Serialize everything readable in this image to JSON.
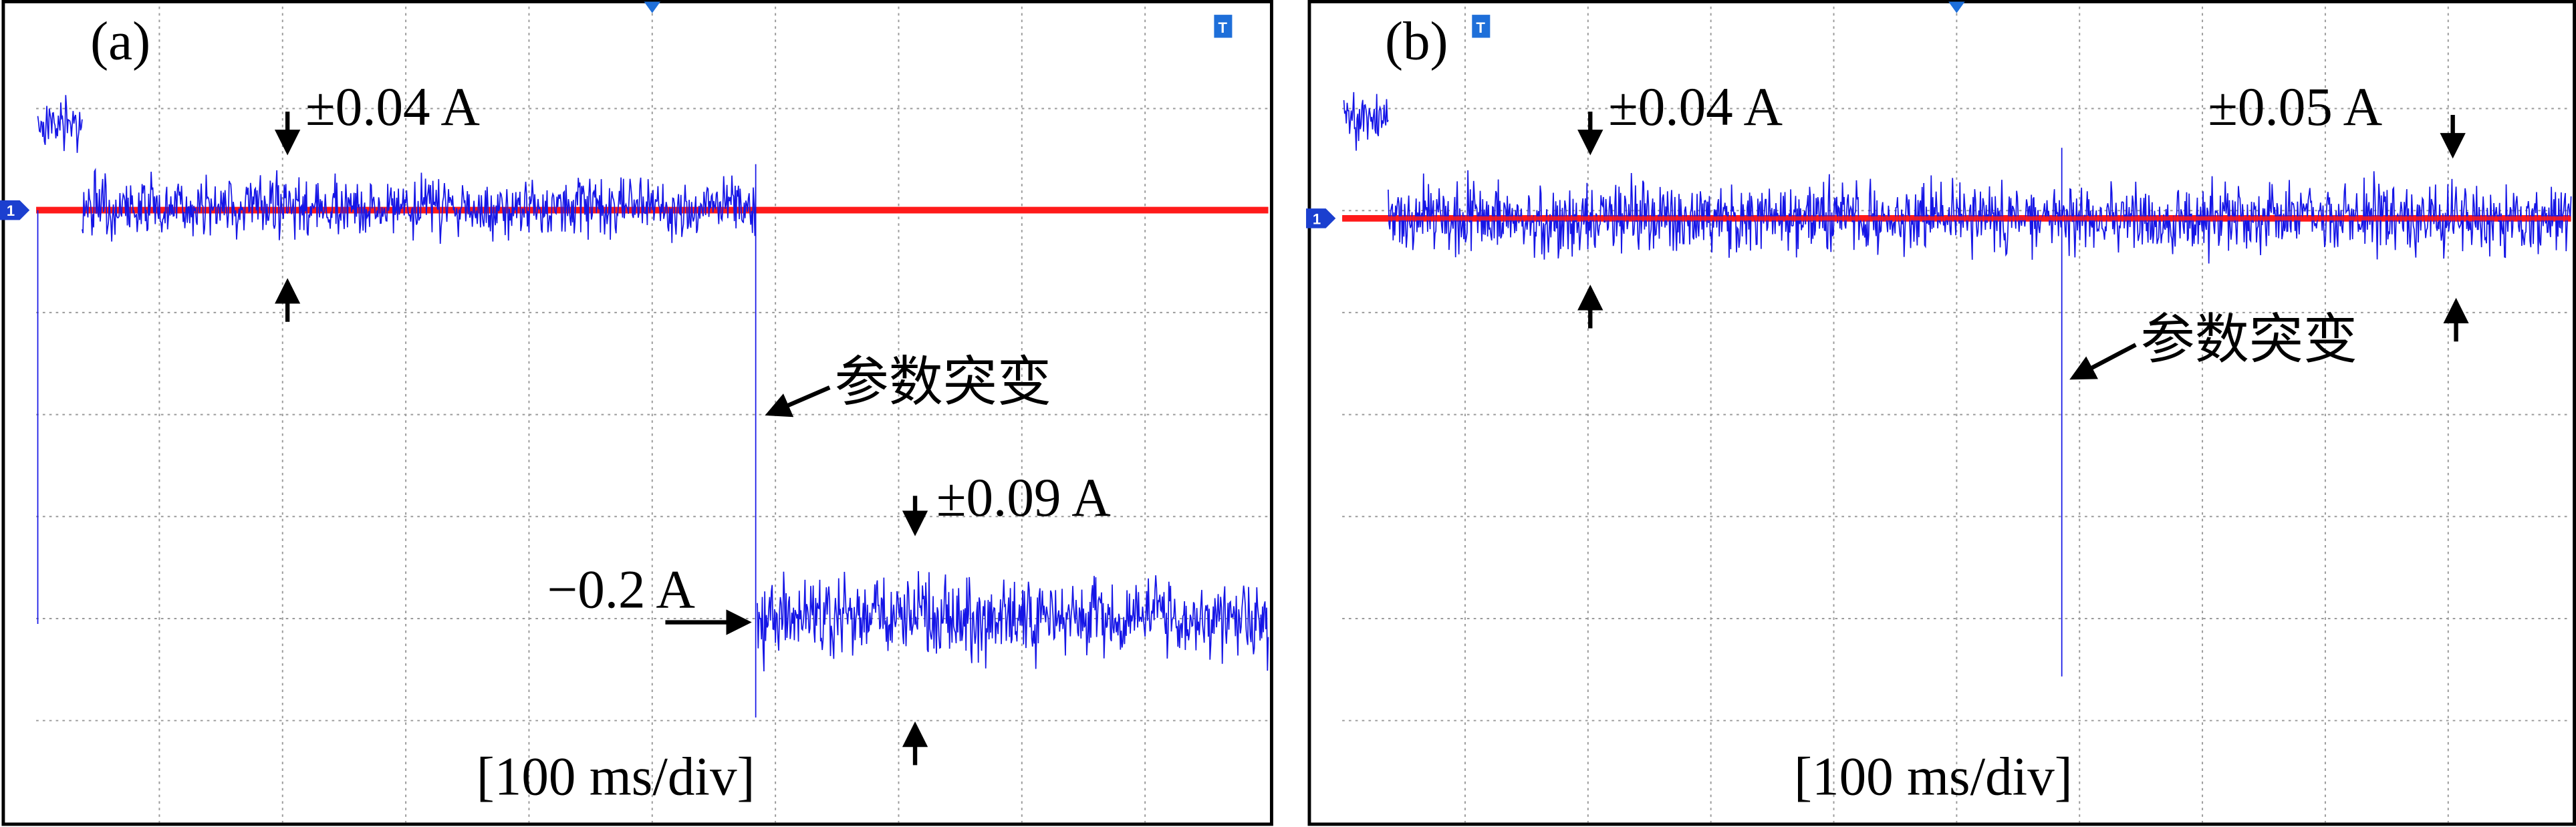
{
  "panels": [
    {
      "label": "(a)",
      "annotations": [
        "±0.04 A",
        "参数突变",
        "±0.09 A",
        "−0.2 A"
      ],
      "timebase": "[100 ms/div]"
    },
    {
      "label": "(b)",
      "annotations": [
        "±0.04 A",
        "±0.05 A",
        "参数突变"
      ],
      "timebase": "[100 ms/div]"
    }
  ],
  "channel": "1",
  "trigger": "T"
}
